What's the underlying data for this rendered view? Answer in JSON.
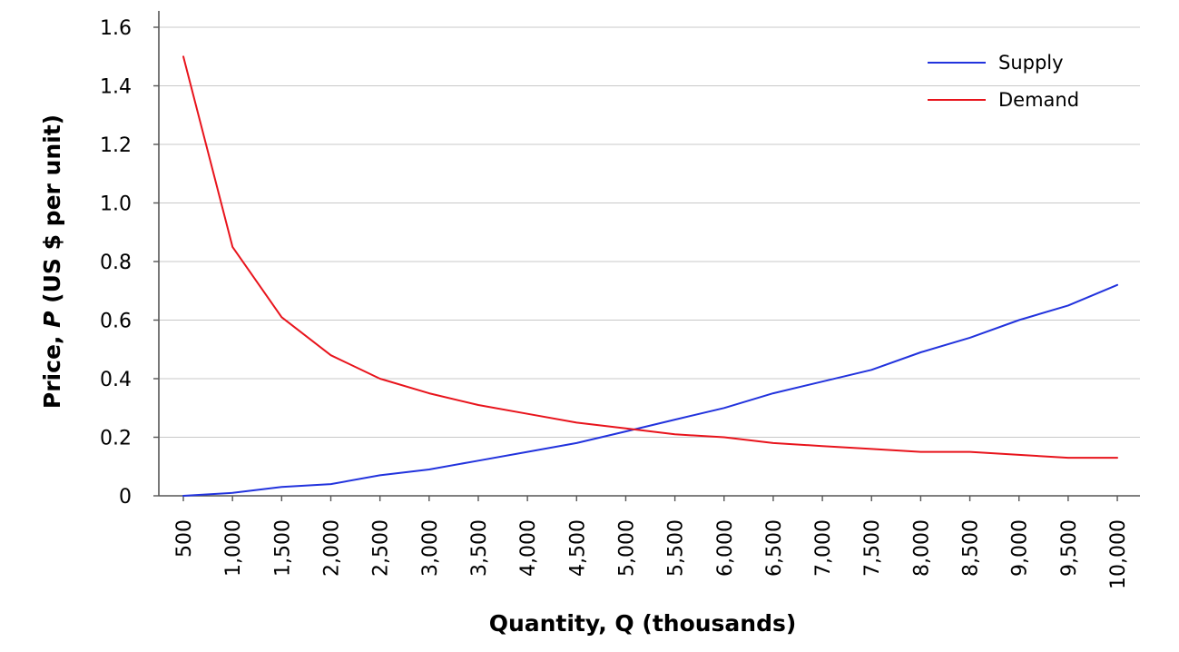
{
  "chart_data": {
    "type": "line",
    "title": "",
    "xlabel": "Quantity, Q (thousands)",
    "ylabel_parts": [
      "Price, ",
      "P",
      " (US $ per unit)"
    ],
    "categories": [
      "500",
      "1,000",
      "1,500",
      "2,000",
      "2,500",
      "3,000",
      "3,500",
      "4,000",
      "4,500",
      "5,000",
      "5,500",
      "6,000",
      "6,500",
      "7,000",
      "7,500",
      "8,000",
      "8,500",
      "9,000",
      "9,500",
      "10,000"
    ],
    "ylim": [
      0,
      1.6
    ],
    "yticks": [
      0,
      0.2,
      0.4,
      0.6,
      0.8,
      1.0,
      1.2,
      1.4,
      1.6
    ],
    "ytick_labels": [
      "0",
      "0.2",
      "0.4",
      "0.6",
      "0.8",
      "1.0",
      "1.2",
      "1.4",
      "1.6"
    ],
    "grid": "horizontal",
    "legend_position": "top-right",
    "series": [
      {
        "name": "Supply",
        "color": "#2233dd",
        "values": [
          0.0,
          0.01,
          0.03,
          0.04,
          0.07,
          0.09,
          0.12,
          0.15,
          0.18,
          0.22,
          0.26,
          0.3,
          0.35,
          0.39,
          0.43,
          0.49,
          0.54,
          0.6,
          0.65,
          0.72
        ]
      },
      {
        "name": "Demand",
        "color": "#e8141c",
        "values": [
          1.5,
          0.85,
          0.61,
          0.48,
          0.4,
          0.35,
          0.31,
          0.28,
          0.25,
          0.23,
          0.21,
          0.2,
          0.18,
          0.17,
          0.16,
          0.15,
          0.15,
          0.14,
          0.13,
          0.13
        ]
      }
    ]
  }
}
